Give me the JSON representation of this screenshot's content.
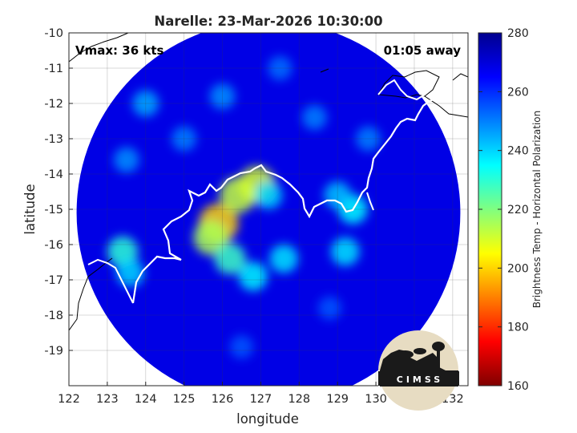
{
  "chart_data": {
    "type": "heatmap",
    "title": "Narelle: 23-Mar-2026 10:30:00",
    "xlabel": "longitude",
    "ylabel": "latitude",
    "xlim": [
      122,
      132.4
    ],
    "ylim": [
      -20,
      -10
    ],
    "x_ticks": [
      122,
      123,
      124,
      125,
      126,
      127,
      128,
      129,
      130,
      131,
      132
    ],
    "y_ticks": [
      -10,
      -11,
      -12,
      -13,
      -14,
      -15,
      -16,
      -17,
      -18,
      -19
    ],
    "y_tick_labels": [
      "-10",
      "-11",
      "-12",
      "-13",
      "-14",
      "-15",
      "-16",
      "-17",
      "-18",
      "-19"
    ],
    "grid": true,
    "colorbar": {
      "label": "Brightness Temp - Horizontal Polarization",
      "range": [
        160,
        280
      ],
      "ticks": [
        160,
        180,
        200,
        220,
        240,
        260,
        280
      ],
      "colormap": "jet"
    },
    "swath": {
      "center_lon": 127.2,
      "center_lat": -15.1,
      "radius_deg": 5.0,
      "background_value": 268
    },
    "features": [
      {
        "lon": 125.9,
        "lat": -15.4,
        "value": 200
      },
      {
        "lon": 126.4,
        "lat": -14.6,
        "value": 212
      },
      {
        "lon": 126.9,
        "lat": -14.3,
        "value": 210
      },
      {
        "lon": 125.7,
        "lat": -15.8,
        "value": 215
      },
      {
        "lon": 126.2,
        "lat": -16.4,
        "value": 228
      },
      {
        "lon": 126.8,
        "lat": -16.9,
        "value": 236
      },
      {
        "lon": 127.6,
        "lat": -16.4,
        "value": 238
      },
      {
        "lon": 127.2,
        "lat": -14.6,
        "value": 240
      },
      {
        "lon": 129.4,
        "lat": -15.0,
        "value": 235
      },
      {
        "lon": 129.0,
        "lat": -14.6,
        "value": 242
      },
      {
        "lon": 129.2,
        "lat": -16.2,
        "value": 238
      },
      {
        "lon": 123.4,
        "lat": -16.2,
        "value": 230
      },
      {
        "lon": 123.6,
        "lat": -16.8,
        "value": 240
      },
      {
        "lon": 124.0,
        "lat": -12.0,
        "value": 245
      },
      {
        "lon": 126.0,
        "lat": -11.8,
        "value": 248
      },
      {
        "lon": 125.0,
        "lat": -13.0,
        "value": 250
      },
      {
        "lon": 123.5,
        "lat": -13.6,
        "value": 248
      },
      {
        "lon": 128.4,
        "lat": -12.4,
        "value": 250
      },
      {
        "lon": 129.8,
        "lat": -13.0,
        "value": 250
      },
      {
        "lon": 127.5,
        "lat": -11.0,
        "value": 252
      },
      {
        "lon": 126.5,
        "lat": -18.9,
        "value": 255
      },
      {
        "lon": 128.8,
        "lat": -17.8,
        "value": 255
      }
    ],
    "annotations": {
      "vmax": "Vmax: 36 kts",
      "time_away": "01:05 away"
    }
  },
  "logo": {
    "text": "CIMSS"
  }
}
